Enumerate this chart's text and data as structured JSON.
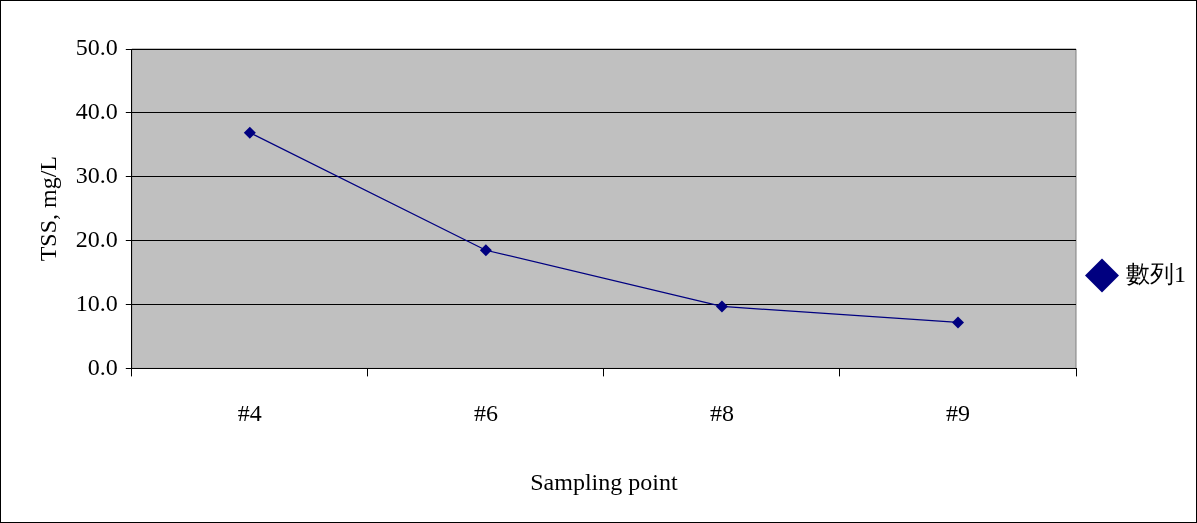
{
  "chart_data": {
    "type": "line",
    "xlabel": "Sampling point",
    "ylabel": "TSS, mg/L",
    "categories": [
      "#4",
      "#6",
      "#8",
      "#9"
    ],
    "series": [
      {
        "name": "數列1",
        "color": "#000080",
        "values": [
          36.9,
          18.5,
          9.7,
          7.2
        ]
      }
    ],
    "ylim": [
      0,
      50
    ],
    "yticks": [
      {
        "value": 0,
        "label": "0.0"
      },
      {
        "value": 10,
        "label": "10.0"
      },
      {
        "value": 20,
        "label": "20.0"
      },
      {
        "value": 30,
        "label": "30.0"
      },
      {
        "value": 40,
        "label": "40.0"
      },
      {
        "value": 50,
        "label": "50.0"
      }
    ],
    "grid": "y",
    "legend": "right",
    "marker": "diamond",
    "line_style": "solid"
  }
}
